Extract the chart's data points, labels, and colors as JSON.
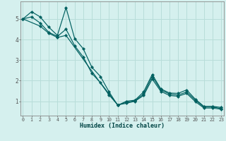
{
  "xlabel": "Humidex (Indice chaleur)",
  "background_color": "#d5f0ee",
  "line_color": "#006060",
  "grid_color": "#b8ddd9",
  "xlim": [
    -0.3,
    23.3
  ],
  "ylim": [
    0.3,
    5.85
  ],
  "yticks": [
    1,
    2,
    3,
    4,
    5
  ],
  "xticks": [
    0,
    1,
    2,
    3,
    4,
    5,
    6,
    7,
    8,
    9,
    10,
    11,
    12,
    13,
    14,
    15,
    16,
    17,
    18,
    19,
    20,
    21,
    22,
    23
  ],
  "line1_x": [
    0,
    1,
    2,
    3,
    4,
    5,
    6,
    7,
    8,
    9,
    10,
    11,
    12,
    13,
    14,
    15,
    16,
    17,
    18,
    19,
    20,
    21,
    22,
    23
  ],
  "line1_y": [
    5.0,
    5.35,
    5.1,
    4.6,
    4.2,
    5.55,
    4.05,
    3.55,
    2.65,
    2.2,
    1.45,
    0.8,
    1.0,
    1.05,
    1.45,
    2.3,
    1.6,
    1.4,
    1.38,
    1.55,
    1.1,
    0.75,
    0.75,
    0.7
  ],
  "line2_x": [
    0,
    1,
    2,
    3,
    4,
    5,
    6,
    7,
    8,
    9,
    10,
    11,
    12,
    13,
    14,
    15,
    16,
    17,
    18,
    19,
    20,
    21,
    22,
    23
  ],
  "line2_y": [
    5.0,
    5.1,
    4.8,
    4.35,
    4.15,
    4.5,
    3.7,
    3.15,
    2.35,
    1.9,
    1.35,
    0.82,
    0.95,
    1.02,
    1.35,
    2.2,
    1.55,
    1.35,
    1.3,
    1.45,
    1.05,
    0.72,
    0.72,
    0.65
  ],
  "line3_x": [
    0,
    2,
    3,
    4,
    5,
    10,
    11,
    12,
    13,
    14,
    15,
    16,
    17,
    18,
    19,
    20,
    21,
    22,
    23
  ],
  "line3_y": [
    5.0,
    4.65,
    4.3,
    4.1,
    4.2,
    1.3,
    0.82,
    0.9,
    1.0,
    1.28,
    2.08,
    1.48,
    1.28,
    1.24,
    1.38,
    0.98,
    0.67,
    0.67,
    0.61
  ]
}
